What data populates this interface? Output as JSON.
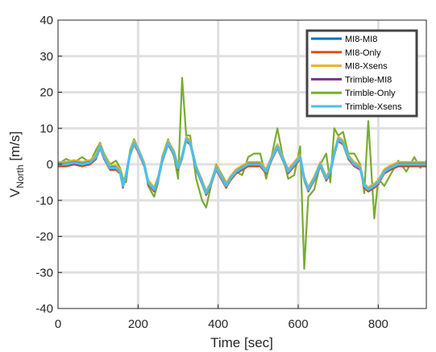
{
  "chart_data": {
    "type": "line",
    "title": "",
    "xlabel": "Time [sec]",
    "ylabel_main": "V",
    "ylabel_sub": "North",
    "ylabel_unit": " [m/s]",
    "xlim": [
      0,
      920
    ],
    "ylim": [
      -40,
      40
    ],
    "xticks": [
      0,
      200,
      400,
      600,
      800
    ],
    "yticks": [
      40,
      30,
      20,
      10,
      0,
      -10,
      -20,
      -30,
      -40
    ],
    "grid": true,
    "legend_position": "top-right",
    "series": [
      {
        "name": "MI8-MI8",
        "color": "#0072BD"
      },
      {
        "name": "MI8-Only",
        "color": "#D95319"
      },
      {
        "name": "MI8-Xsens",
        "color": "#EDB120"
      },
      {
        "name": "Trimble-MI8",
        "color": "#7E2F8E"
      },
      {
        "name": "Trimble-Only",
        "color": "#77AC30"
      },
      {
        "name": "Trimble-Xsens",
        "color": "#4DBEEE"
      }
    ],
    "x": [
      0,
      20,
      40,
      60,
      80,
      95,
      105,
      115,
      130,
      145,
      155,
      162,
      170,
      180,
      190,
      200,
      215,
      225,
      240,
      250,
      260,
      275,
      290,
      300,
      310,
      320,
      330,
      345,
      360,
      370,
      380,
      395,
      410,
      420,
      430,
      445,
      460,
      475,
      490,
      505,
      520,
      535,
      548,
      560,
      575,
      590,
      605,
      615,
      625,
      640,
      655,
      670,
      680,
      690,
      700,
      712,
      725,
      740,
      755,
      765,
      775,
      790,
      800,
      815,
      830,
      850,
      870,
      890,
      905,
      920
    ],
    "smooth_y": [
      0,
      0,
      0.5,
      0,
      0.5,
      2,
      5,
      2,
      -1,
      -1,
      -2,
      -6,
      -3,
      3,
      6,
      4,
      0,
      -5,
      -7,
      -4,
      1,
      6,
      3,
      -1,
      2,
      7,
      6,
      -1,
      -5,
      -8,
      -6,
      -1,
      -4,
      -6,
      -4,
      -2,
      -1,
      0,
      0,
      0,
      -2,
      2,
      5,
      2,
      -2,
      0,
      2,
      -4,
      -7,
      -4,
      0,
      -4,
      -2,
      3,
      7,
      6,
      2,
      0,
      -1,
      -6,
      -7,
      -6,
      -5,
      -2,
      -1,
      0,
      0,
      0,
      0,
      0
    ],
    "noise_y": [
      0,
      1.5,
      0.5,
      2,
      0.5,
      4,
      6,
      3,
      0,
      1,
      -1,
      -4,
      -5,
      4,
      7,
      4.5,
      0.5,
      -6,
      -9,
      -5,
      2,
      7,
      2,
      -4,
      24,
      8,
      8,
      -4,
      -10,
      -12,
      -7,
      0,
      -3,
      -5,
      -4,
      -2,
      -3,
      2,
      3,
      3,
      -4,
      3,
      10,
      3,
      -4,
      -3,
      5,
      -29,
      -9,
      -7,
      0,
      3,
      -5,
      10,
      8,
      9,
      3,
      3,
      0,
      -8,
      12,
      -15,
      -4,
      -6,
      -3,
      1,
      -2,
      2,
      -1,
      1
    ]
  }
}
